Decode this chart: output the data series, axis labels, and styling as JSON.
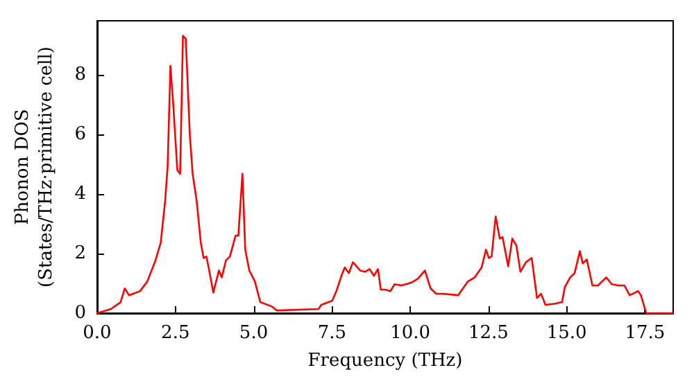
{
  "chart_data": {
    "type": "line",
    "xlabel": "Frequency (THz)",
    "ylabel": "Phonon DOS\n(States/THz·primitive cell)",
    "x": [
      0,
      0.44,
      0.75,
      0.88,
      1.02,
      1.15,
      1.37,
      1.6,
      1.86,
      2.03,
      2.17,
      2.25,
      2.34,
      2.43,
      2.56,
      2.65,
      2.74,
      2.83,
      2.96,
      3.05,
      3.18,
      3.31,
      3.4,
      3.49,
      3.58,
      3.71,
      3.89,
      3.98,
      4.11,
      4.24,
      4.42,
      4.51,
      4.64,
      4.73,
      4.86,
      5.04,
      5.21,
      5.57,
      5.74,
      7.07,
      7.16,
      7.51,
      7.64,
      7.82,
      7.91,
      8.04,
      8.17,
      8.4,
      8.57,
      8.7,
      8.84,
      8.97,
      9.06,
      9.19,
      9.37,
      9.5,
      9.72,
      10.03,
      10.25,
      10.47,
      10.65,
      10.83,
      11.05,
      11.53,
      11.84,
      12.06,
      12.28,
      12.42,
      12.51,
      12.6,
      12.73,
      12.86,
      12.95,
      13.13,
      13.26,
      13.39,
      13.52,
      13.7,
      13.88,
      14.05,
      14.18,
      14.32,
      14.63,
      14.85,
      14.94,
      15.11,
      15.25,
      15.42,
      15.51,
      15.64,
      15.82,
      16.0,
      16.26,
      16.44,
      16.66,
      16.84,
      17.01,
      17.28,
      17.37,
      17.54,
      18.38
    ],
    "series": [
      {
        "color": "#ff0000",
        "values": [
          0,
          0.14,
          0.37,
          0.83,
          0.6,
          0.65,
          0.74,
          1.06,
          1.76,
          2.36,
          3.75,
          4.9,
          8.29,
          7.0,
          4.8,
          4.67,
          9.3,
          9.2,
          5.97,
          4.67,
          3.75,
          2.36,
          1.85,
          1.9,
          1.43,
          0.69,
          1.43,
          1.2,
          1.76,
          1.9,
          2.6,
          2.6,
          4.67,
          2.13,
          1.43,
          1.06,
          0.37,
          0.23,
          0.09,
          0.14,
          0.28,
          0.42,
          0.74,
          1.3,
          1.53,
          1.34,
          1.71,
          1.43,
          1.39,
          1.48,
          1.25,
          1.48,
          0.79,
          0.79,
          0.74,
          0.97,
          0.93,
          1.02,
          1.16,
          1.43,
          0.83,
          0.65,
          0.65,
          0.6,
          1.06,
          1.2,
          1.53,
          2.13,
          1.85,
          1.9,
          3.24,
          2.5,
          2.55,
          1.57,
          2.5,
          2.27,
          1.39,
          1.71,
          1.85,
          0.51,
          0.65,
          0.28,
          0.32,
          0.37,
          0.88,
          1.2,
          1.34,
          2.08,
          1.67,
          1.8,
          0.93,
          0.93,
          1.2,
          0.97,
          0.93,
          0.93,
          0.6,
          0.74,
          0.6,
          0,
          0
        ]
      }
    ],
    "xlim": [
      0,
      18.4
    ],
    "xticks": [
      {
        "value": 0,
        "label": "0.0"
      },
      {
        "value": 2.5,
        "label": "2.5"
      },
      {
        "value": 5,
        "label": "5.0"
      },
      {
        "value": 7.5,
        "label": "7.5"
      },
      {
        "value": 10,
        "label": "10.0"
      },
      {
        "value": 12.5,
        "label": "12.5"
      },
      {
        "value": 15,
        "label": "15.0"
      },
      {
        "value": 17.5,
        "label": "17.5"
      }
    ],
    "ylim": [
      0,
      9.8
    ],
    "yticks": [
      0,
      2,
      4,
      6,
      8
    ],
    "grid": false,
    "marker": "none",
    "line_style": "solid"
  }
}
